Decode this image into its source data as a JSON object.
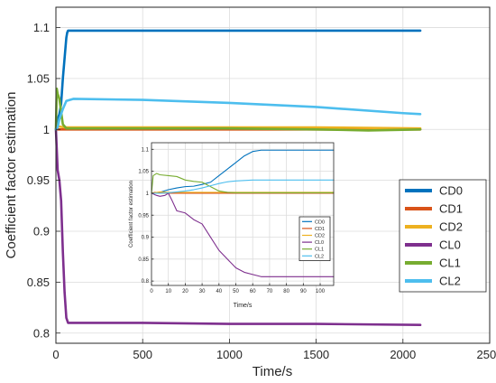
{
  "chart_data": [
    {
      "type": "line",
      "xlabel": "Time/s",
      "ylabel": "Coefficient factor estimation",
      "xlim": [
        0,
        2500
      ],
      "ylim": [
        0.79,
        1.12
      ],
      "xticks": [
        "0",
        "500",
        "1000",
        "1500",
        "2000",
        "2500"
      ],
      "yticks": [
        "0.8",
        "0.85",
        "0.9",
        "0.95",
        "1",
        "1.05",
        "1.1"
      ],
      "grid": true,
      "legend": "right-middle",
      "series": [
        {
          "name": "CD0",
          "color": "#0072BD",
          "x": [
            0,
            10,
            20,
            30,
            40,
            50,
            60,
            65,
            70,
            100,
            500,
            1000,
            1500,
            2100
          ],
          "y": [
            1.0,
            1.01,
            1.015,
            1.025,
            1.05,
            1.07,
            1.09,
            1.095,
            1.097,
            1.097,
            1.097,
            1.097,
            1.097,
            1.097
          ]
        },
        {
          "name": "CD1",
          "color": "#D95319",
          "x": [
            0,
            5,
            10,
            100,
            500,
            1000,
            1500,
            2100
          ],
          "y": [
            1.0,
            1.002,
            1.0,
            1.0,
            1.0,
            1.0,
            1.0,
            1.0
          ]
        },
        {
          "name": "CD2",
          "color": "#EDB120",
          "x": [
            0,
            10,
            50,
            100,
            500,
            1000,
            1500,
            2100
          ],
          "y": [
            1.0,
            1.003,
            1.002,
            1.002,
            1.002,
            1.002,
            1.002,
            1.001
          ]
        },
        {
          "name": "CL0",
          "color": "#7E2F8E",
          "x": [
            0,
            10,
            20,
            30,
            40,
            50,
            60,
            70,
            100,
            500,
            1000,
            1500,
            2100
          ],
          "y": [
            1.0,
            0.96,
            0.95,
            0.93,
            0.88,
            0.84,
            0.815,
            0.81,
            0.81,
            0.81,
            0.809,
            0.809,
            0.808
          ]
        },
        {
          "name": "CL1",
          "color": "#77AC30",
          "x": [
            0,
            5,
            10,
            20,
            40,
            60,
            100,
            500,
            1000,
            1500,
            1800,
            2100
          ],
          "y": [
            1.0,
            1.04,
            1.035,
            1.03,
            1.005,
            1.001,
            1.001,
            1.001,
            1.001,
            1.0,
            0.999,
            1.0
          ]
        },
        {
          "name": "CL2",
          "color": "#4DBEEE",
          "x": [
            0,
            10,
            20,
            40,
            60,
            100,
            500,
            1000,
            1500,
            2000,
            2100
          ],
          "y": [
            1.0,
            1.002,
            1.01,
            1.02,
            1.028,
            1.03,
            1.029,
            1.026,
            1.022,
            1.016,
            1.015
          ]
        }
      ]
    },
    {
      "type": "line",
      "xlabel": "Time/s",
      "ylabel": "Coefficient factor estimation",
      "xlim": [
        0,
        108
      ],
      "ylim": [
        0.79,
        1.115
      ],
      "xticks": [
        "0",
        "10",
        "20",
        "30",
        "40",
        "50",
        "60",
        "70",
        "80",
        "90",
        "100"
      ],
      "yticks": [
        "0.8",
        "0.85",
        "0.9",
        "0.95",
        "1",
        "1.05",
        "1.1"
      ],
      "grid": true,
      "legend": "right-middle",
      "series": [
        {
          "name": "CD0",
          "color": "#0072BD",
          "x": [
            0,
            5,
            10,
            15,
            20,
            25,
            30,
            35,
            40,
            45,
            50,
            55,
            60,
            65,
            70,
            80,
            90,
            100,
            108
          ],
          "y": [
            1.0,
            1.002,
            1.008,
            1.012,
            1.015,
            1.016,
            1.02,
            1.025,
            1.04,
            1.055,
            1.07,
            1.085,
            1.095,
            1.098,
            1.098,
            1.098,
            1.098,
            1.098,
            1.098
          ]
        },
        {
          "name": "CD1",
          "color": "#D95319",
          "x": [
            0,
            2,
            5,
            10,
            20,
            50,
            108
          ],
          "y": [
            1.0,
            1.002,
            1.001,
            1.0,
            1.0,
            1.0,
            1.0
          ]
        },
        {
          "name": "CD2",
          "color": "#EDB120",
          "x": [
            0,
            5,
            10,
            20,
            50,
            108
          ],
          "y": [
            1.0,
            1.003,
            1.002,
            1.002,
            1.002,
            1.002
          ]
        },
        {
          "name": "CL0",
          "color": "#7E2F8E",
          "x": [
            0,
            3,
            5,
            8,
            10,
            12,
            15,
            20,
            25,
            30,
            35,
            40,
            45,
            50,
            55,
            60,
            65,
            70,
            80,
            90,
            100,
            108
          ],
          "y": [
            1.0,
            0.995,
            0.993,
            0.995,
            1.0,
            0.985,
            0.96,
            0.955,
            0.94,
            0.93,
            0.9,
            0.87,
            0.85,
            0.83,
            0.82,
            0.815,
            0.81,
            0.81,
            0.81,
            0.81,
            0.81,
            0.81
          ]
        },
        {
          "name": "CL1",
          "color": "#77AC30",
          "x": [
            0,
            1,
            3,
            5,
            10,
            15,
            20,
            25,
            30,
            35,
            40,
            45,
            50,
            108
          ],
          "y": [
            1.0,
            1.04,
            1.045,
            1.042,
            1.04,
            1.038,
            1.03,
            1.027,
            1.025,
            1.015,
            1.005,
            1.002,
            1.001,
            1.001
          ]
        },
        {
          "name": "CL2",
          "color": "#4DBEEE",
          "x": [
            0,
            5,
            10,
            15,
            20,
            25,
            30,
            35,
            40,
            45,
            50,
            55,
            60,
            70,
            80,
            90,
            100,
            108
          ],
          "y": [
            1.0,
            1.0,
            1.001,
            1.003,
            1.005,
            1.008,
            1.012,
            1.017,
            1.022,
            1.026,
            1.028,
            1.029,
            1.03,
            1.03,
            1.03,
            1.03,
            1.03,
            1.03
          ]
        }
      ]
    }
  ]
}
